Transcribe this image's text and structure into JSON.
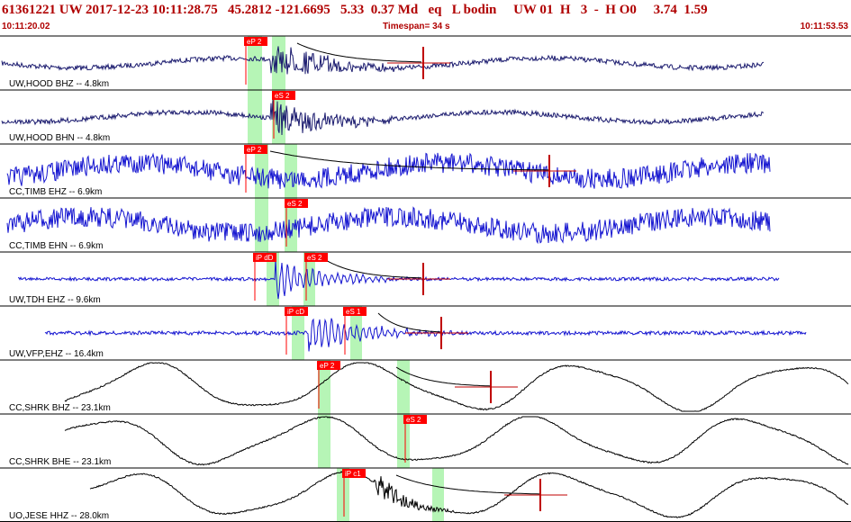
{
  "header": {
    "event_line": "61361221 UW 2017-12-23 10:11:28.75   45.2812 -121.6695   5.33  0.37 Md   eq   L bodin     UW 01  H   3  -  H O0     3.74  1.59",
    "start_time": "10:11:20.02",
    "timespan": "Timespan=  34 s",
    "end_time": "10:11:53.53"
  },
  "colors": {
    "header_text": "#b00000",
    "trace_dark": "#1a1a6e",
    "trace_blue": "#1515d0",
    "trace_black": "#000000",
    "pick_box": "#ff0000",
    "pick_window": "#b6f5b6",
    "fit_line": "#c00000"
  },
  "traces": [
    {
      "label": "UW,HOOD BHZ -- 4.8km",
      "picks": [
        "eP 2"
      ],
      "style": "dark",
      "kind": "noise"
    },
    {
      "label": "UW,HOOD BHN -- 4.8km",
      "picks": [
        "eS 2"
      ],
      "style": "dark",
      "kind": "noise"
    },
    {
      "label": "CC,TIMB EHZ -- 6.9km",
      "picks": [
        "eP 2"
      ],
      "style": "blue",
      "kind": "noise"
    },
    {
      "label": "CC,TIMB EHN -- 6.9km",
      "picks": [
        "eS 2"
      ],
      "style": "blue",
      "kind": "noise"
    },
    {
      "label": "UW,TDH EHZ -- 9.6km",
      "picks": [
        "iP dD",
        "eS 2"
      ],
      "style": "blue",
      "kind": "quiet"
    },
    {
      "label": "UW,VFP,EHZ -- 16.4km",
      "picks": [
        "iP cD",
        "eS 1"
      ],
      "style": "blue",
      "kind": "quiet"
    },
    {
      "label": "CC,SHRK BHZ -- 23.1km",
      "picks": [
        "eP 2"
      ],
      "style": "black",
      "kind": "wave"
    },
    {
      "label": "CC,SHRK BHE -- 23.1km",
      "picks": [
        "eS 2"
      ],
      "style": "black",
      "kind": "wave"
    },
    {
      "label": "UO,JESE HHZ -- 28.0km",
      "picks": [
        "iP c1"
      ],
      "style": "black",
      "kind": "wave"
    }
  ]
}
